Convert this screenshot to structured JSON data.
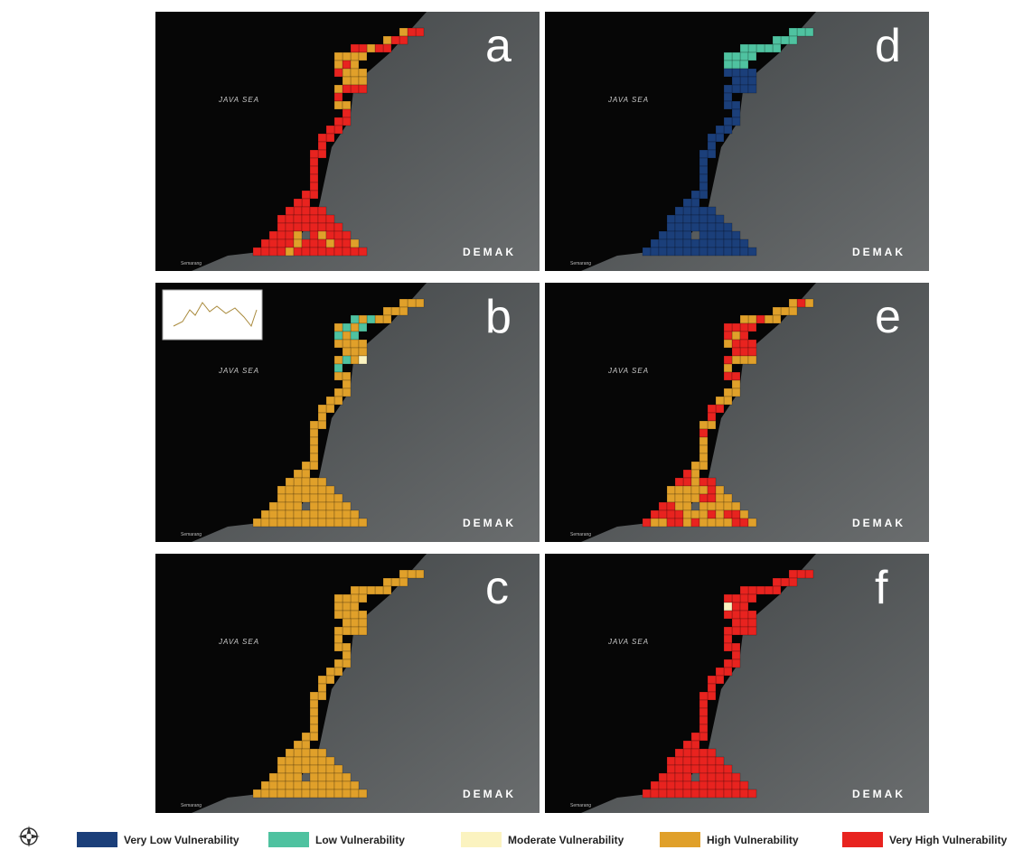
{
  "panels": [
    {
      "letter": "a"
    },
    {
      "letter": "d"
    },
    {
      "letter": "b"
    },
    {
      "letter": "e"
    },
    {
      "letter": "c"
    },
    {
      "letter": "f"
    }
  ],
  "sea_label": "JAVA SEA",
  "region_label": "DEMAK",
  "city_label": "Semarang",
  "legend": [
    {
      "label": "Very Low Vulnerability",
      "color": "#1b3f7a"
    },
    {
      "label": "Low Vulnerability",
      "color": "#4fc2a0"
    },
    {
      "label": "Moderate Vulnerability",
      "color": "#fbf3c0"
    },
    {
      "label": "High Vulnerability",
      "color": "#e0a02a"
    },
    {
      "label": "Very High Vulnerability",
      "color": "#e8231f"
    }
  ]
}
